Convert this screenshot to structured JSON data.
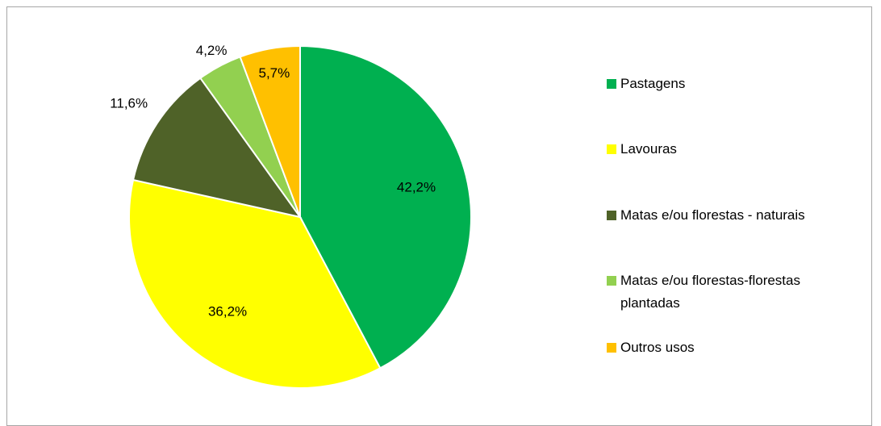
{
  "chart_data": {
    "type": "pie",
    "categories": [
      "Pastagens",
      "Lavouras",
      "Matas e/ou florestas - naturais",
      "Matas e/ou florestas-florestas plantadas",
      "Outros usos"
    ],
    "values": [
      42.2,
      36.2,
      11.6,
      4.2,
      5.7
    ],
    "value_labels": [
      "42,2%",
      "36,2%",
      "11,6%",
      "4,2%",
      "5,7%"
    ],
    "colors": [
      "#00b050",
      "#ffff00",
      "#4f6228",
      "#92d050",
      "#ffc000"
    ]
  }
}
